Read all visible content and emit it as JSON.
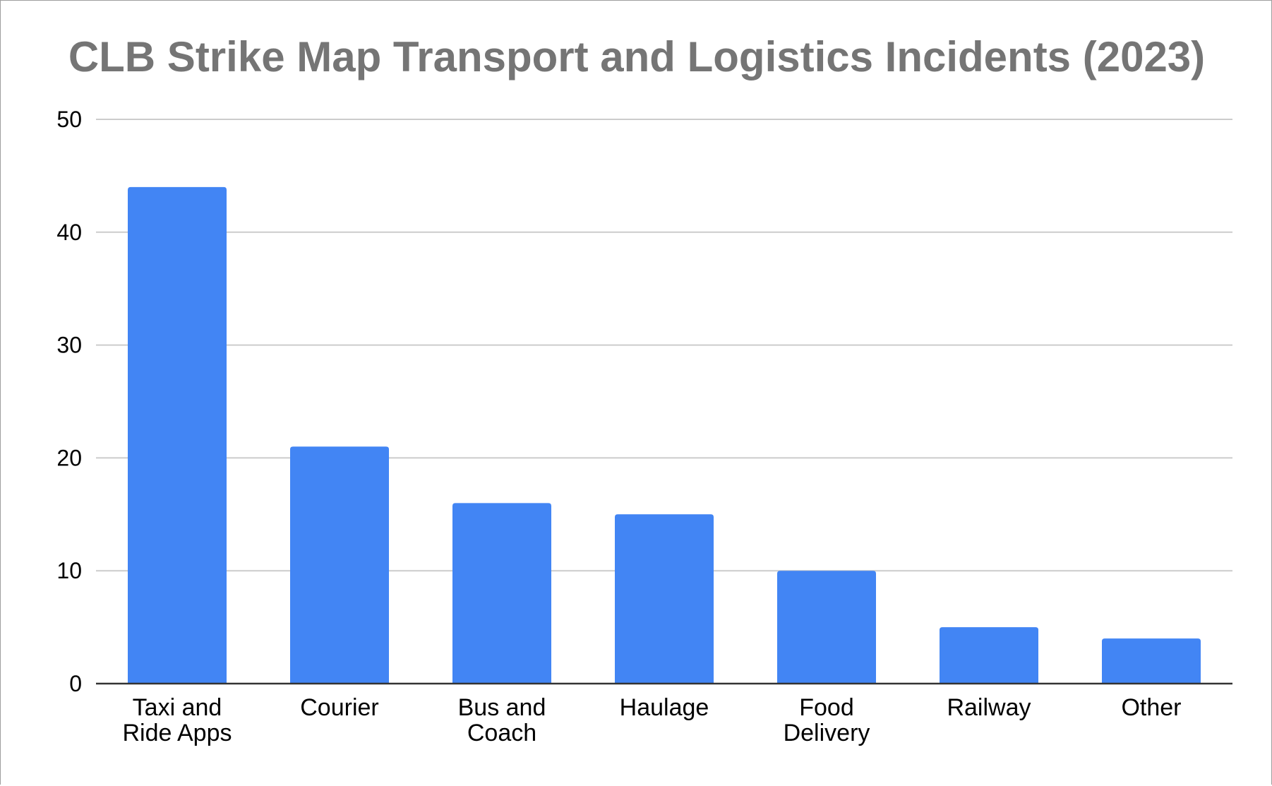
{
  "chart_data": {
    "type": "bar",
    "title": "CLB Strike Map Transport and Logistics Incidents (2023)",
    "xlabel": "",
    "ylabel": "",
    "categories": [
      [
        "Taxi and",
        "Ride Apps"
      ],
      [
        "Courier"
      ],
      [
        "Bus and",
        "Coach"
      ],
      [
        "Haulage"
      ],
      [
        "Food",
        "Delivery"
      ],
      [
        "Railway"
      ],
      [
        "Other"
      ]
    ],
    "values": [
      44,
      21,
      16,
      15,
      10,
      5,
      4
    ],
    "ylim": [
      0,
      50
    ],
    "yticks": [
      "0",
      "10",
      "20",
      "30",
      "40",
      "50"
    ],
    "grid": true,
    "legend": "none",
    "colors": {
      "bar": "#4285f4",
      "title": "#757575",
      "grid": "#cccccc",
      "axis": "#333333"
    }
  }
}
